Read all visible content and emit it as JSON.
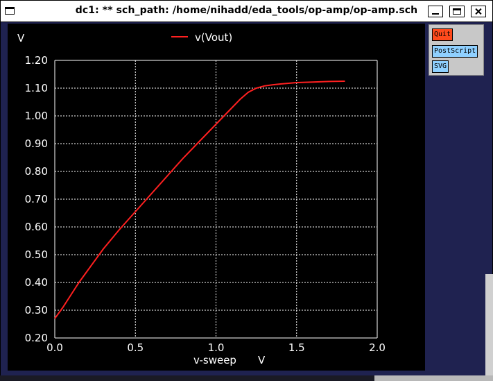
{
  "window": {
    "title": "dc1: ** sch_path: /home/nihadd/eda_tools/op-amp/op-amp.sch"
  },
  "side_panel": {
    "quit_label": "Quit",
    "postscript_label": "PostScript",
    "svg_label": "SVG"
  },
  "colors": {
    "plot_background": "#000000",
    "grid": "#ffffff",
    "trace": "#ff2020",
    "quit_button": "#ff4a1c",
    "export_button": "#8fd0ff"
  },
  "chart_data": {
    "type": "line",
    "title": "",
    "xlabel": "v-sweep",
    "xunit": "V",
    "ylabel": "",
    "yunit": "V",
    "xlim": [
      0.0,
      2.0
    ],
    "ylim": [
      0.2,
      1.2
    ],
    "xticks": [
      0.0,
      0.5,
      1.0,
      1.5,
      2.0
    ],
    "xtick_labels": [
      "0.0",
      "0.5",
      "1.0",
      "1.5",
      "2.0"
    ],
    "yticks": [
      0.2,
      0.3,
      0.4,
      0.5,
      0.6,
      0.7,
      0.8,
      0.9,
      1.0,
      1.1,
      1.2
    ],
    "ytick_labels": [
      "0.20",
      "0.30",
      "0.40",
      "0.50",
      "0.60",
      "0.70",
      "0.80",
      "0.90",
      "1.00",
      "1.10",
      "1.20"
    ],
    "grid": true,
    "legend_position": "top-center",
    "series": [
      {
        "name": "v(Vout)",
        "x": [
          0.0,
          0.05,
          0.1,
          0.15,
          0.2,
          0.3,
          0.4,
          0.5,
          0.6,
          0.7,
          0.8,
          0.9,
          1.0,
          1.05,
          1.1,
          1.15,
          1.2,
          1.25,
          1.3,
          1.35,
          1.4,
          1.5,
          1.6,
          1.7,
          1.8
        ],
        "y": [
          0.27,
          0.31,
          0.355,
          0.4,
          0.44,
          0.52,
          0.59,
          0.655,
          0.72,
          0.785,
          0.85,
          0.91,
          0.97,
          1.0,
          1.03,
          1.06,
          1.085,
          1.1,
          1.108,
          1.112,
          1.115,
          1.12,
          1.122,
          1.124,
          1.125
        ]
      }
    ]
  }
}
